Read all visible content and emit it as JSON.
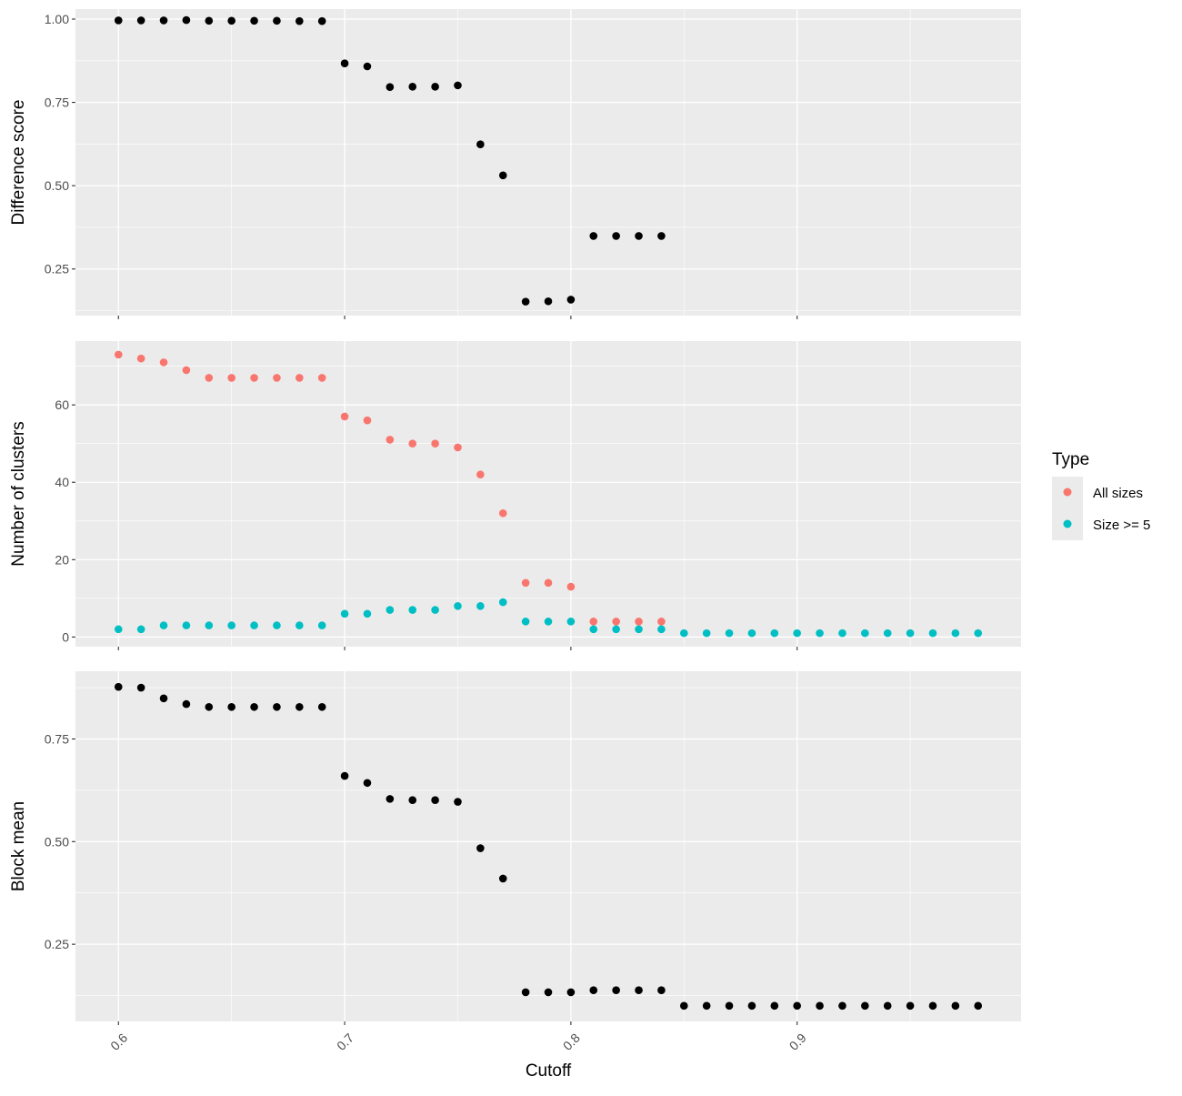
{
  "chart_data": {
    "type": "scatter",
    "xlabel": "Cutoff",
    "x_ticks": [
      "0.6",
      "0.7",
      "0.8",
      "0.9"
    ],
    "xlim": [
      0.581,
      0.999
    ],
    "grid": true,
    "legend": {
      "title": "Type",
      "placement": "right",
      "entries": [
        {
          "label": "All sizes",
          "color": "#F8766D"
        },
        {
          "label": "Size >= 5",
          "color": "#00BFC4"
        }
      ]
    },
    "panels": [
      {
        "ylabel": "Difference score",
        "ylim": [
          0.11,
          1.03
        ],
        "y_ticks": [
          0.25,
          0.5,
          0.75,
          1.0
        ],
        "y_tick_labels": [
          "0.25",
          "0.50",
          "0.75",
          "1.00"
        ],
        "series": [
          {
            "color": "#000000",
            "x": [
              0.6,
              0.61,
              0.62,
              0.63,
              0.64,
              0.65,
              0.66,
              0.67,
              0.68,
              0.69,
              0.7,
              0.71,
              0.72,
              0.73,
              0.74,
              0.75,
              0.76,
              0.77,
              0.78,
              0.79,
              0.8,
              0.81,
              0.82,
              0.83,
              0.84
            ],
            "y": [
              0.996,
              0.996,
              0.996,
              0.997,
              0.995,
              0.995,
              0.995,
              0.995,
              0.994,
              0.994,
              0.867,
              0.858,
              0.796,
              0.797,
              0.797,
              0.801,
              0.624,
              0.531,
              0.152,
              0.153,
              0.158,
              0.349,
              0.349,
              0.349,
              0.349
            ]
          }
        ]
      },
      {
        "ylabel": "Number of clusters",
        "ylim": [
          -2.5,
          76.5
        ],
        "y_ticks": [
          0,
          20,
          40,
          60
        ],
        "y_tick_labels": [
          "0",
          "20",
          "40",
          "60"
        ],
        "series": [
          {
            "name": "All sizes",
            "color": "#F8766D",
            "x": [
              0.6,
              0.61,
              0.62,
              0.63,
              0.64,
              0.65,
              0.66,
              0.67,
              0.68,
              0.69,
              0.7,
              0.71,
              0.72,
              0.73,
              0.74,
              0.75,
              0.76,
              0.77,
              0.78,
              0.79,
              0.8,
              0.81,
              0.82,
              0.83,
              0.84
            ],
            "y": [
              73,
              72,
              71,
              69,
              67,
              67,
              67,
              67,
              67,
              67,
              57,
              56,
              51,
              50,
              50,
              49,
              42,
              32,
              14,
              14,
              13,
              4,
              4,
              4,
              4
            ]
          },
          {
            "name": "Size >= 5",
            "color": "#00BFC4",
            "x": [
              0.6,
              0.61,
              0.62,
              0.63,
              0.64,
              0.65,
              0.66,
              0.67,
              0.68,
              0.69,
              0.7,
              0.71,
              0.72,
              0.73,
              0.74,
              0.75,
              0.76,
              0.77,
              0.78,
              0.79,
              0.8,
              0.81,
              0.82,
              0.83,
              0.84,
              0.85,
              0.86,
              0.87,
              0.88,
              0.89,
              0.9,
              0.91,
              0.92,
              0.93,
              0.94,
              0.95,
              0.96,
              0.97,
              0.98
            ],
            "y": [
              2,
              2,
              3,
              3,
              3,
              3,
              3,
              3,
              3,
              3,
              6,
              6,
              7,
              7,
              7,
              8,
              8,
              9,
              4,
              4,
              4,
              2,
              2,
              2,
              2,
              1,
              1,
              1,
              1,
              1,
              1,
              1,
              1,
              1,
              1,
              1,
              1,
              1,
              1
            ]
          }
        ]
      },
      {
        "ylabel": "Block mean",
        "ylim": [
          0.062,
          0.915
        ],
        "y_ticks": [
          0.25,
          0.5,
          0.75
        ],
        "y_tick_labels": [
          "0.25",
          "0.50",
          "0.75"
        ],
        "series": [
          {
            "color": "#000000",
            "x": [
              0.6,
              0.61,
              0.62,
              0.63,
              0.64,
              0.65,
              0.66,
              0.67,
              0.68,
              0.69,
              0.7,
              0.71,
              0.72,
              0.73,
              0.74,
              0.75,
              0.76,
              0.77,
              0.78,
              0.79,
              0.8,
              0.81,
              0.82,
              0.83,
              0.84,
              0.85,
              0.86,
              0.87,
              0.88,
              0.89,
              0.9,
              0.91,
              0.92,
              0.93,
              0.94,
              0.95,
              0.96,
              0.97,
              0.98
            ],
            "y": [
              0.877,
              0.875,
              0.849,
              0.835,
              0.828,
              0.828,
              0.828,
              0.828,
              0.828,
              0.828,
              0.66,
              0.643,
              0.604,
              0.601,
              0.601,
              0.597,
              0.484,
              0.41,
              0.133,
              0.133,
              0.133,
              0.138,
              0.138,
              0.138,
              0.138,
              0.1,
              0.1,
              0.1,
              0.1,
              0.1,
              0.1,
              0.1,
              0.1,
              0.1,
              0.1,
              0.1,
              0.1,
              0.1,
              0.1
            ]
          }
        ]
      }
    ]
  }
}
